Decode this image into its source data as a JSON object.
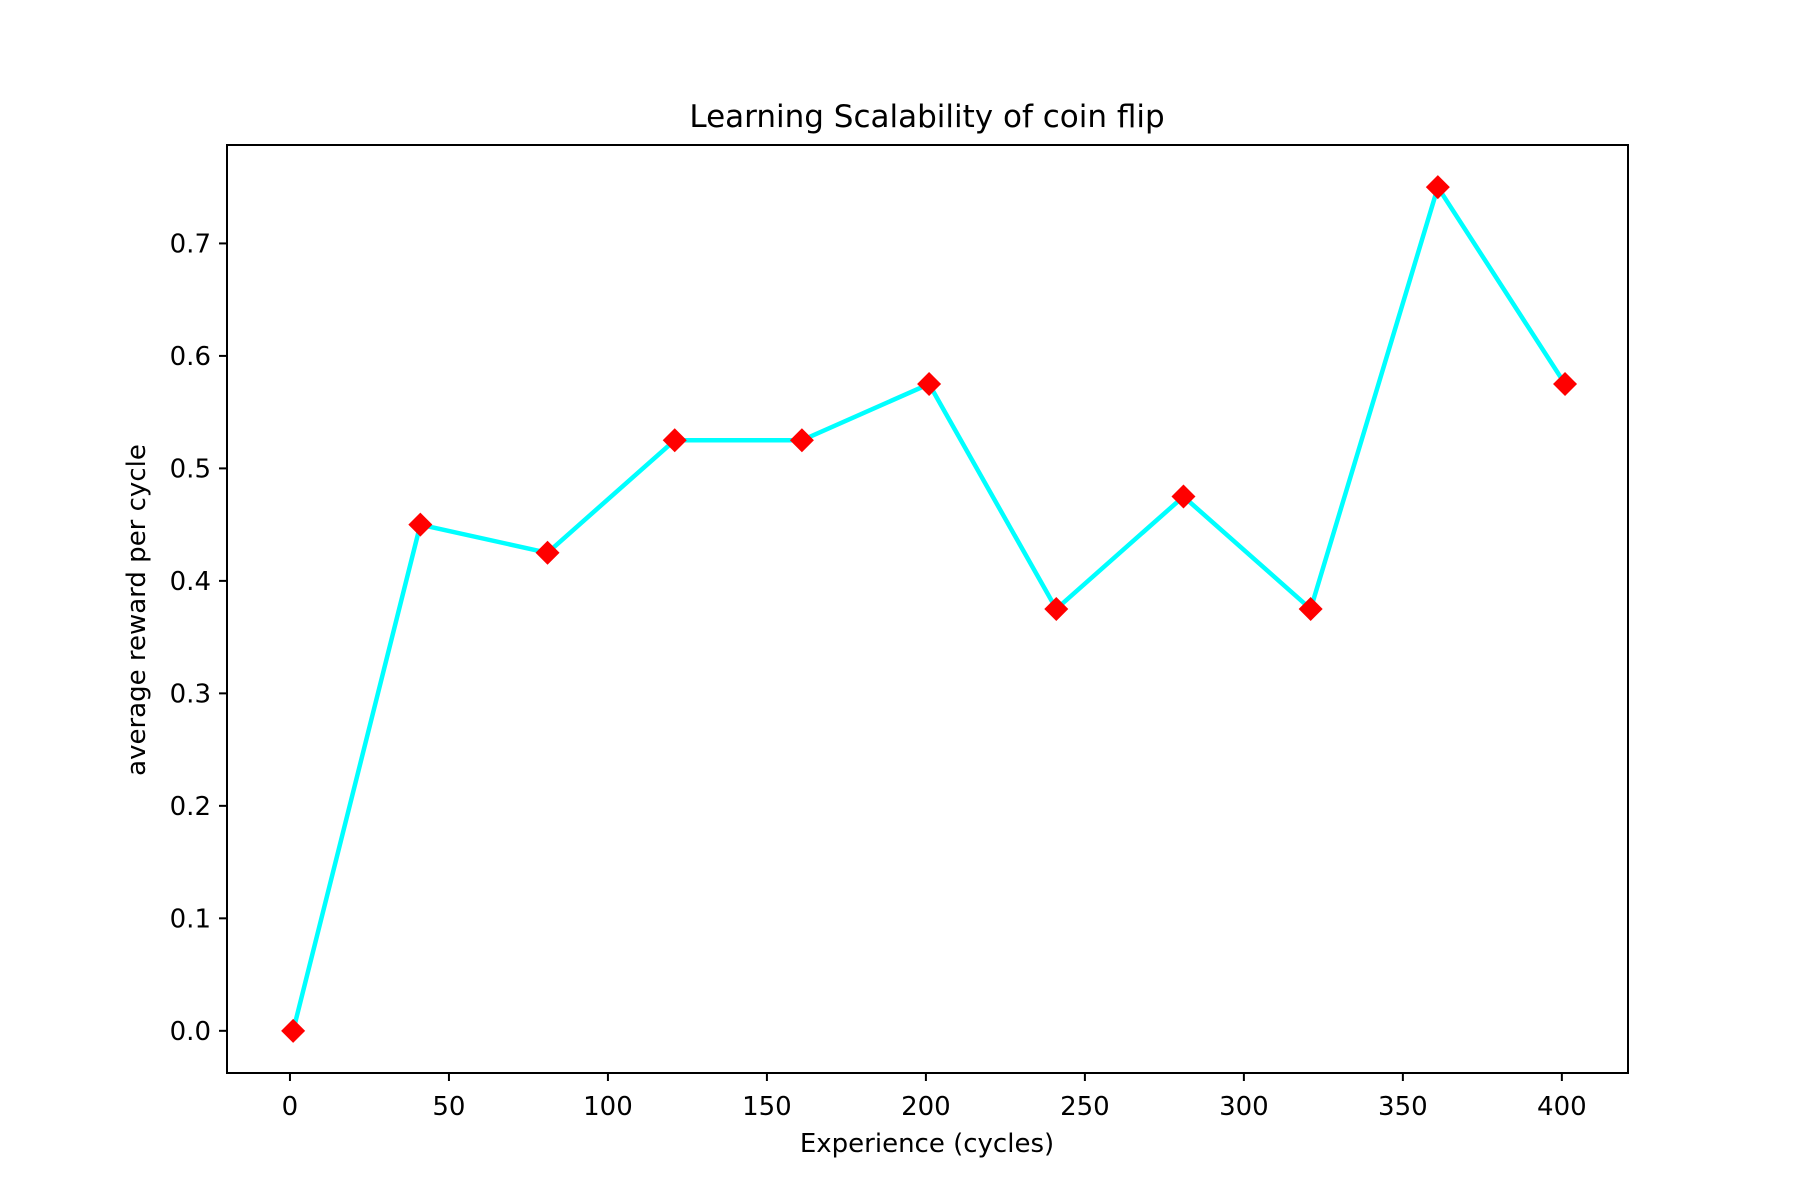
{
  "chart_data": {
    "type": "line",
    "title": "Learning Scalability of coin flip",
    "xlabel": "Experience (cycles)",
    "ylabel": "average reward per cycle",
    "xlim": [
      -19.8,
      420.8
    ],
    "ylim": [
      -0.0375,
      0.7875
    ],
    "xticks": [
      0,
      50,
      100,
      150,
      200,
      250,
      300,
      350,
      400
    ],
    "yticks": [
      0.0,
      0.1,
      0.2,
      0.3,
      0.4,
      0.5,
      0.6,
      0.7
    ],
    "xtick_labels": [
      "0",
      "50",
      "100",
      "150",
      "200",
      "250",
      "300",
      "350",
      "400"
    ],
    "ytick_labels": [
      "0.0",
      "0.1",
      "0.2",
      "0.3",
      "0.4",
      "0.5",
      "0.6",
      "0.7"
    ],
    "grid": false,
    "series": [
      {
        "x": [
          1,
          41,
          81,
          121,
          161,
          201,
          241,
          281,
          321,
          361,
          401
        ],
        "y": [
          0.0,
          0.45,
          0.425,
          0.525,
          0.525,
          0.575,
          0.375,
          0.475,
          0.375,
          0.75,
          0.575
        ],
        "line_color": "#00ffff",
        "marker": "diamond",
        "marker_color": "#ff0000"
      }
    ]
  }
}
